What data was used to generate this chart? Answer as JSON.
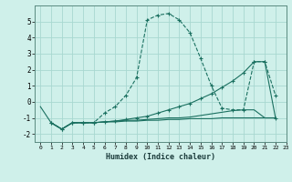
{
  "xlabel": "Humidex (Indice chaleur)",
  "bg_color": "#cff0ea",
  "grid_color": "#a8d8d0",
  "line_color": "#1a7060",
  "xlim": [
    -0.5,
    23
  ],
  "ylim": [
    -2.5,
    6.0
  ],
  "xticks": [
    0,
    1,
    2,
    3,
    4,
    5,
    6,
    7,
    8,
    9,
    10,
    11,
    12,
    13,
    14,
    15,
    16,
    17,
    18,
    19,
    20,
    21,
    22,
    23
  ],
  "yticks": [
    -2,
    -1,
    0,
    1,
    2,
    3,
    4,
    5
  ],
  "series": [
    {
      "x": [
        0,
        1,
        2,
        3,
        4,
        5,
        6,
        7,
        8,
        9,
        10,
        11,
        12,
        13,
        14,
        15,
        16,
        17,
        18,
        19,
        20,
        21,
        22
      ],
      "y": [
        -0.3,
        -1.3,
        -1.7,
        -1.3,
        -1.3,
        -1.3,
        -1.25,
        -1.25,
        -1.2,
        -1.2,
        -1.15,
        -1.15,
        -1.1,
        -1.1,
        -1.05,
        -1.05,
        -1.05,
        -1.0,
        -1.0,
        -1.0,
        -1.0,
        -1.0,
        -1.0
      ],
      "marker": null,
      "linestyle": "-"
    },
    {
      "x": [
        1,
        2,
        3,
        4,
        5,
        6,
        7,
        8,
        9,
        10,
        11,
        12,
        13,
        14,
        15,
        16,
        17,
        18,
        19,
        20,
        21,
        22
      ],
      "y": [
        -1.3,
        -1.7,
        -1.3,
        -1.3,
        -1.3,
        -0.7,
        -0.3,
        0.4,
        1.5,
        5.1,
        5.4,
        5.5,
        5.1,
        4.3,
        2.7,
        1.0,
        -0.4,
        -0.5,
        -0.5,
        2.5,
        2.5,
        0.4
      ],
      "marker": "+",
      "linestyle": "--"
    },
    {
      "x": [
        1,
        2,
        3,
        4,
        5,
        6,
        7,
        8,
        9,
        10,
        11,
        12,
        13,
        14,
        15,
        16,
        17,
        18,
        19,
        20,
        21,
        22
      ],
      "y": [
        -1.3,
        -1.7,
        -1.3,
        -1.3,
        -1.3,
        -1.25,
        -1.2,
        -1.1,
        -1.0,
        -0.9,
        -0.7,
        -0.5,
        -0.3,
        -0.1,
        0.2,
        0.5,
        0.9,
        1.3,
        1.8,
        2.5,
        2.5,
        -1.0
      ],
      "marker": "+",
      "linestyle": "-"
    },
    {
      "x": [
        1,
        2,
        3,
        4,
        5,
        6,
        7,
        8,
        9,
        10,
        11,
        12,
        13,
        14,
        15,
        16,
        17,
        18,
        19,
        20,
        21,
        22
      ],
      "y": [
        -1.3,
        -1.7,
        -1.3,
        -1.3,
        -1.3,
        -1.25,
        -1.2,
        -1.15,
        -1.15,
        -1.1,
        -1.05,
        -1.0,
        -1.0,
        -0.95,
        -0.85,
        -0.75,
        -0.65,
        -0.55,
        -0.5,
        -0.5,
        -1.0,
        -1.0
      ],
      "marker": null,
      "linestyle": "-"
    }
  ]
}
